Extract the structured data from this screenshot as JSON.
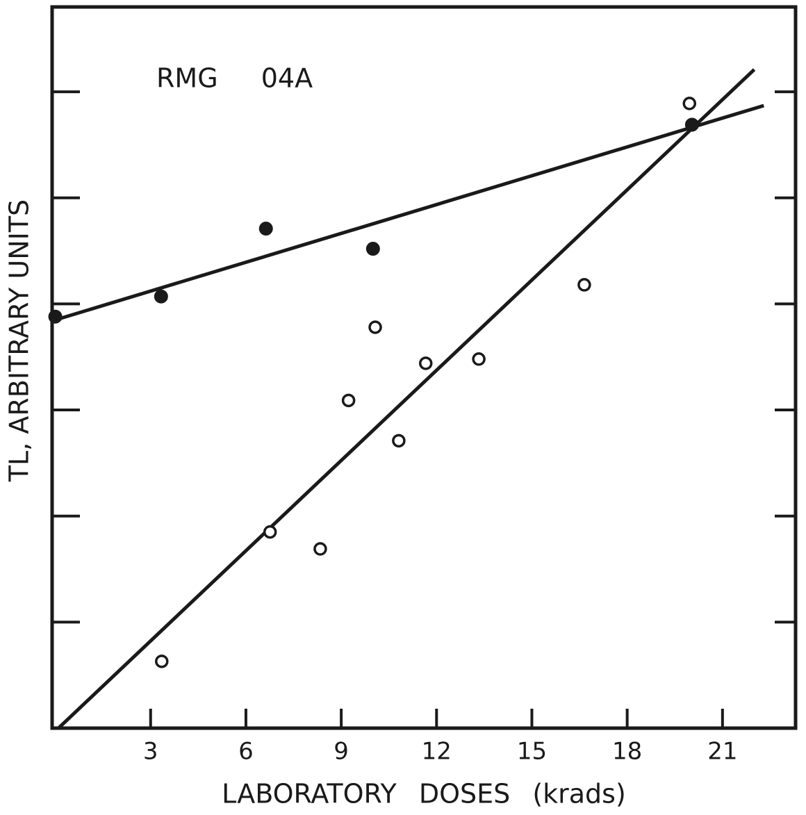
{
  "chart_data": {
    "type": "scatter",
    "annotation": "RMG 04A",
    "xlabel": "LABORATORY DOSES (krads)",
    "ylabel": "TL, ARBITRARY UNITS",
    "xlim": [
      -0.1,
      23.3
    ],
    "xticks": [
      3,
      6,
      9,
      12,
      15,
      18,
      21
    ],
    "ylim": [
      0,
      6.8
    ],
    "yticks": [
      1,
      2,
      3,
      4,
      5,
      6
    ],
    "series": [
      {
        "marker": "filled",
        "color": "#1a1a1a",
        "x": [
          0,
          3.33,
          6.63,
          10.0,
          20.04
        ],
        "values": [
          3.88,
          4.07,
          4.71,
          4.52,
          5.69
        ],
        "fit": {
          "x": [
            -0.1,
            22.3
          ],
          "values": [
            3.84,
            5.87
          ]
        }
      },
      {
        "marker": "open",
        "color": "#1a1a1a",
        "x": [
          3.35,
          6.76,
          8.34,
          9.23,
          10.07,
          10.81,
          11.66,
          13.33,
          16.65,
          19.96
        ],
        "values": [
          0.63,
          1.85,
          1.69,
          3.09,
          3.78,
          2.71,
          3.44,
          3.48,
          4.18,
          5.89
        ],
        "fit": {
          "x": [
            0.1,
            22.0
          ],
          "values": [
            0,
            6.21
          ]
        }
      }
    ]
  }
}
